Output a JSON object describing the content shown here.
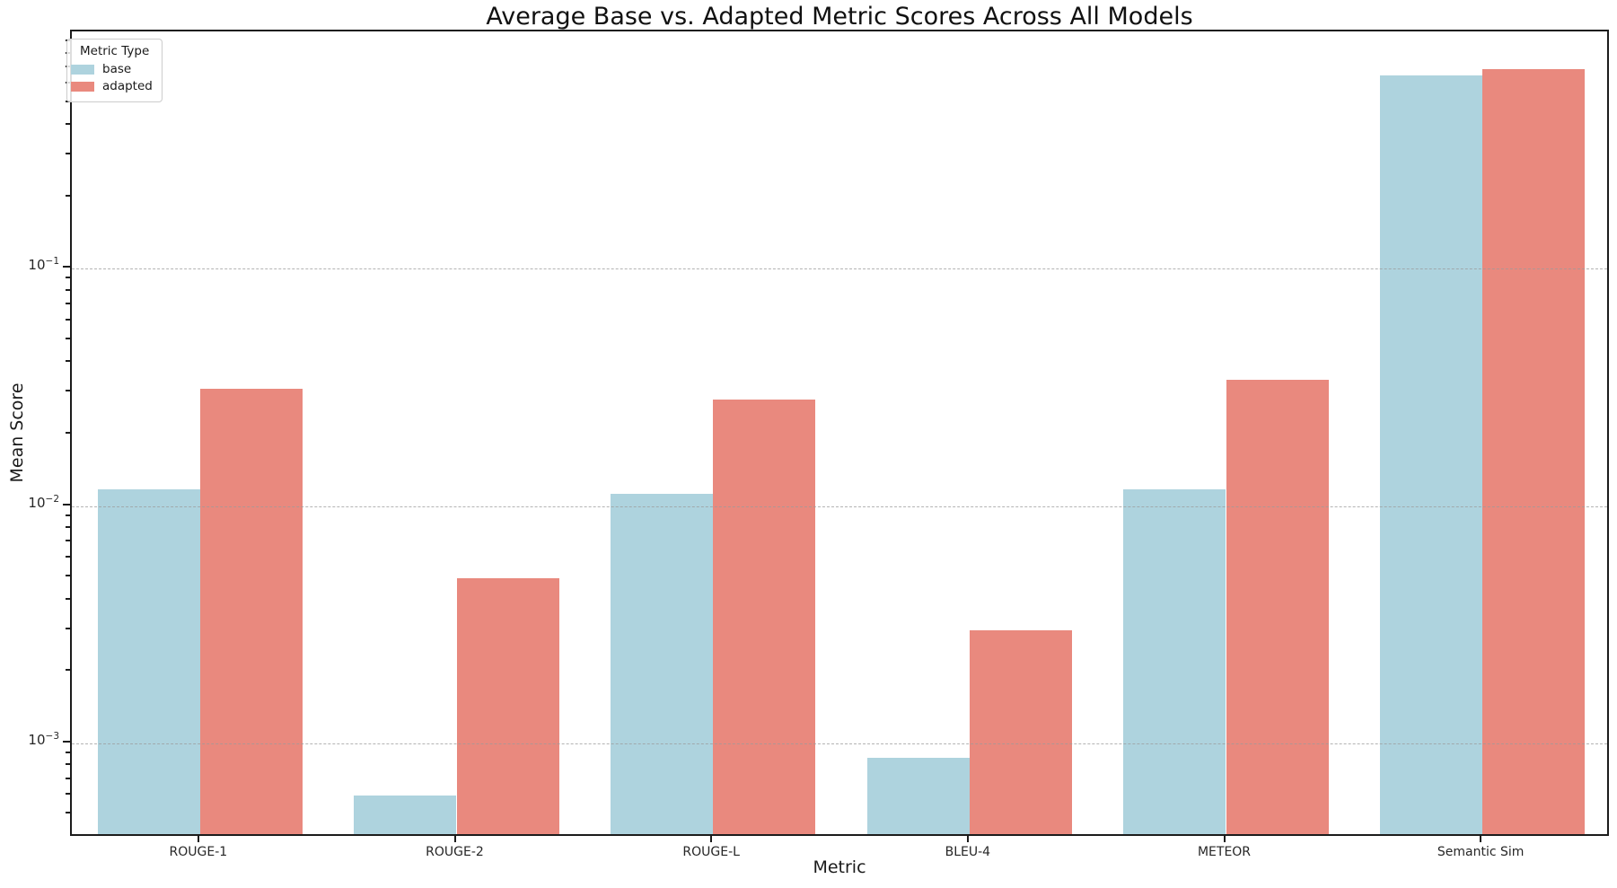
{
  "figure_title": "Average Base vs. Adapted Metric Scores Across All Models",
  "legend": {
    "title": "Metric Type",
    "items": [
      {
        "label": "base",
        "color": "#aed3de"
      },
      {
        "label": "adapted",
        "color": "#e9897e"
      }
    ]
  },
  "chart_data": {
    "type": "bar",
    "title": "Average Base vs. Adapted Metric Scores Across All Models",
    "xlabel": "Metric",
    "ylabel": "Mean Score",
    "yscale": "log",
    "ylim": [
      0.0004,
      1.0
    ],
    "grid": "horizontal dashed at major ticks",
    "legend_position": "upper left",
    "bar_group_fraction": 0.8,
    "categories": [
      "ROUGE-1",
      "ROUGE-2",
      "ROUGE-L",
      "BLEU-4",
      "METEOR",
      "Semantic Sim"
    ],
    "series": [
      {
        "name": "base",
        "color": "#aed3de",
        "values": [
          0.0114,
          0.00058,
          0.0109,
          0.00084,
          0.0114,
          0.63
        ]
      },
      {
        "name": "adapted",
        "color": "#e9897e",
        "values": [
          0.03,
          0.0048,
          0.0272,
          0.0029,
          0.033,
          0.668
        ]
      }
    ],
    "yticks": [
      {
        "value": 0.1,
        "mantissa": "10",
        "exponent": "−1"
      },
      {
        "value": 0.01,
        "mantissa": "10",
        "exponent": "−2"
      },
      {
        "value": 0.001,
        "mantissa": "10",
        "exponent": "−3"
      }
    ]
  }
}
